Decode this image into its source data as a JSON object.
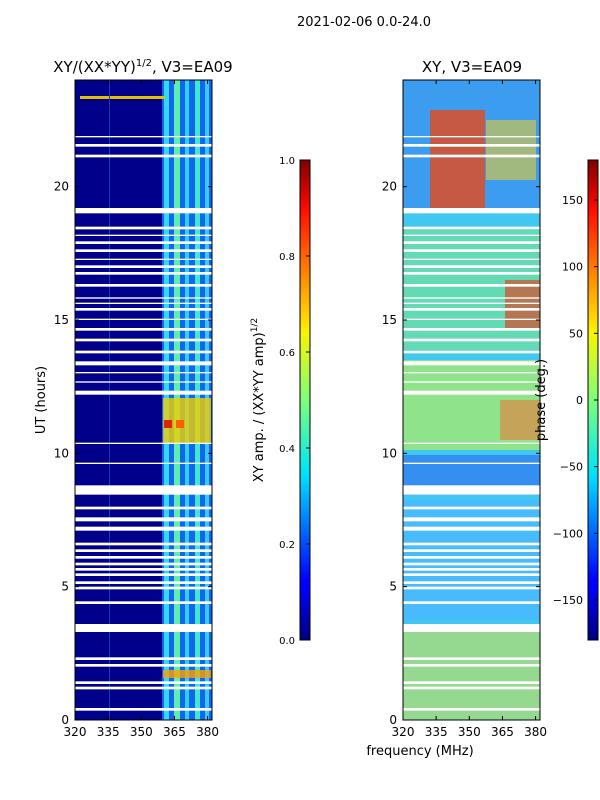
{
  "suptitle": "2021-02-06 0.0-24.0",
  "xlabel_shared": "frequency (MHz)",
  "chart_data": [
    {
      "type": "heatmap",
      "title_base": "XY/(XX*YY)",
      "title_exponent": "1/2",
      "title_suffix": ", V3=EA09",
      "xlabel": "frequency (MHz)",
      "ylabel": "UT (hours)",
      "xlim": [
        320,
        382
      ],
      "ylim": [
        0,
        24
      ],
      "xticks": [
        320,
        335,
        350,
        365,
        380
      ],
      "yticks": [
        0,
        5,
        10,
        15,
        20
      ],
      "colorbar": {
        "label_base": "XY amp. / (XX*YY amp)",
        "label_exponent": "1/2",
        "range": [
          0.0,
          1.0
        ],
        "ticks": [
          "0.0",
          "0.2",
          "0.4",
          "0.6",
          "0.8",
          "1.0"
        ],
        "tick_values": [
          0.0,
          0.2,
          0.4,
          0.6,
          0.8,
          1.0
        ],
        "colormap": "jet"
      }
    },
    {
      "type": "heatmap",
      "title": "XY, V3=EA09",
      "xlabel": "frequency (MHz)",
      "ylabel": "",
      "xlim": [
        320,
        382
      ],
      "ylim": [
        0,
        24
      ],
      "xticks": [
        320,
        335,
        350,
        365,
        380
      ],
      "yticks": [
        0,
        5,
        10,
        15,
        20
      ],
      "colorbar": {
        "label": "phase (deg.)",
        "range": [
          -180,
          180
        ],
        "ticks": [
          "−150",
          "−100",
          "−50",
          "0",
          "50",
          "100",
          "150"
        ],
        "tick_values": [
          -150,
          -100,
          -50,
          0,
          50,
          100,
          150
        ],
        "colormap": "jet"
      }
    }
  ],
  "flagged_time_ranges_hours": [
    [
      0.35,
      0.45
    ],
    [
      1.15,
      1.25
    ],
    [
      1.35,
      1.45
    ],
    [
      2.0,
      2.1
    ],
    [
      2.25,
      2.35
    ],
    [
      3.3,
      3.6
    ],
    [
      4.35,
      4.45
    ],
    [
      4.9,
      5.0
    ],
    [
      5.1,
      5.2
    ],
    [
      5.4,
      5.5
    ],
    [
      5.6,
      5.7
    ],
    [
      5.8,
      5.9
    ],
    [
      6.05,
      6.15
    ],
    [
      6.3,
      6.4
    ],
    [
      6.55,
      6.65
    ],
    [
      7.1,
      7.25
    ],
    [
      7.45,
      7.6
    ],
    [
      7.9,
      8.0
    ],
    [
      8.45,
      8.8
    ],
    [
      9.6,
      9.65
    ],
    [
      10.35,
      10.4
    ],
    [
      12.2,
      12.35
    ],
    [
      12.65,
      12.7
    ],
    [
      13.0,
      13.05
    ],
    [
      13.3,
      13.45
    ],
    [
      13.75,
      13.85
    ],
    [
      14.2,
      14.3
    ],
    [
      14.6,
      14.7
    ],
    [
      15.0,
      15.05
    ],
    [
      15.35,
      15.45
    ],
    [
      15.6,
      15.65
    ],
    [
      15.8,
      15.85
    ],
    [
      16.25,
      16.35
    ],
    [
      16.7,
      16.8
    ],
    [
      16.95,
      17.05
    ],
    [
      17.25,
      17.3
    ],
    [
      17.55,
      17.65
    ],
    [
      17.85,
      17.95
    ],
    [
      18.15,
      18.2
    ],
    [
      18.4,
      18.5
    ],
    [
      19.0,
      19.2
    ],
    [
      21.1,
      21.2
    ],
    [
      21.5,
      21.6
    ],
    [
      21.85,
      21.9
    ]
  ]
}
